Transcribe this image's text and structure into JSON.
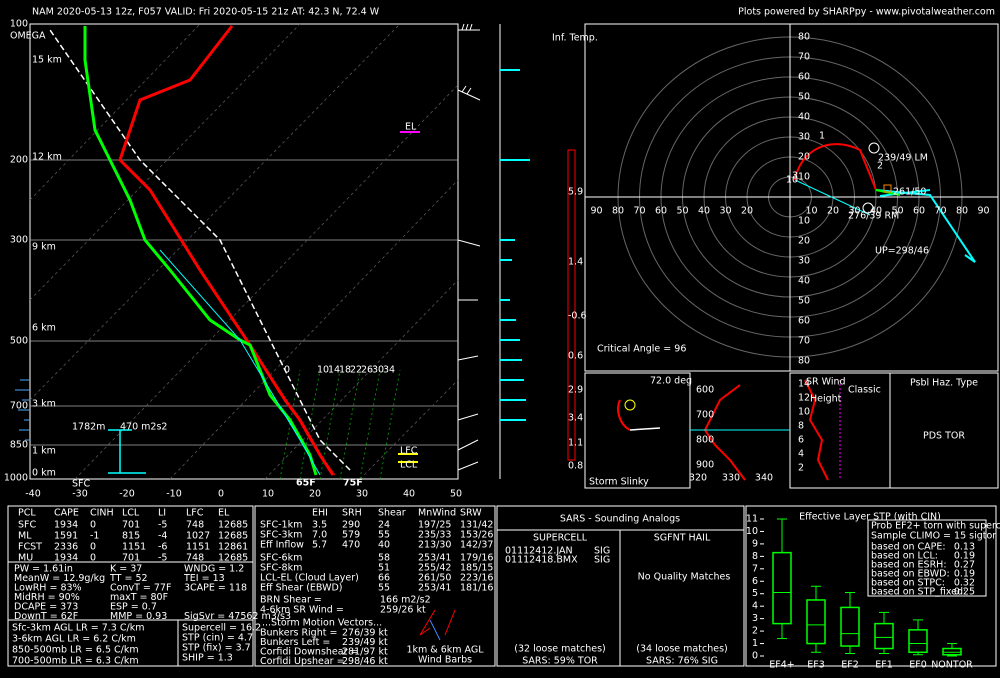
{
  "header": {
    "title": "NAM 2020-05-13 12z, F057   VALID: Fri 2020-05-15 21z   AT: 42.3 N, 72.4 W",
    "credit": "Plots powered by SHARPpy - www.pivotalweather.com"
  },
  "skewt": {
    "pressure_labels": [
      "100",
      "200",
      "300",
      "500",
      "700",
      "850",
      "1000"
    ],
    "height_labels": [
      "15 km",
      "12 km",
      "9 km",
      "6 km",
      "3 km",
      "1 km",
      "0 km"
    ],
    "temp_labels": [
      "-40",
      "-30",
      "-20",
      "-10",
      "0",
      "10",
      "20",
      "30",
      "40",
      "50"
    ],
    "mixing_labels": [
      "0",
      "10",
      "14",
      "18",
      "22",
      "26",
      "30",
      "34"
    ],
    "omega": "OMEGA",
    "el": "EL",
    "lfc": "LFC",
    "lcl": "LCL",
    "sfc": "SFC",
    "dewpoint": "65F",
    "temperature": "75F",
    "inflow_depth": "1782m",
    "inflow_srh": "470 m2s2"
  },
  "inferred_temp": {
    "title": "Inf. Temp.",
    "labels": [
      "5.9",
      "1.4",
      "-0.6",
      "0.6",
      "2.9",
      "3.4",
      "1.1",
      "0.8"
    ]
  },
  "hodograph": {
    "x_left": [
      "90",
      "80",
      "70",
      "60",
      "50",
      "40",
      "30",
      "20"
    ],
    "x_right": [
      "10",
      "20",
      "30",
      "40",
      "50",
      "60",
      "70",
      "80",
      "90"
    ],
    "y_up": [
      "80",
      "70",
      "60",
      "50",
      "40",
      "30",
      "20",
      "10"
    ],
    "y_down": [
      "10",
      "20",
      "30",
      "40",
      "50",
      "60",
      "70",
      "80"
    ],
    "left_mover": "239/49 LM",
    "mean_wind": "261/50",
    "right_mover": "276/39 RM",
    "upshear": "UP=298/46",
    "critical_angle": "Critical Angle = 96",
    "points": [
      "1",
      "2",
      "3",
      "10"
    ]
  },
  "slinky": {
    "angle": "72.0 deg",
    "title": "Storm Slinky",
    "pressure_ticks": [
      "600",
      "700",
      "800",
      "900"
    ],
    "theta_ticks": [
      "320",
      "330",
      "340"
    ]
  },
  "sr_wind": {
    "title": "SR Wind",
    "height": "Height",
    "classic": "Classic",
    "ticks": [
      "14",
      "12",
      "10",
      "8",
      "6",
      "4",
      "2"
    ]
  },
  "hazard": {
    "title": "Psbl Haz. Type",
    "value": "PDS TOR"
  },
  "parcels": {
    "header": [
      "PCL",
      "CAPE",
      "CINH",
      "LCL",
      "LI",
      "LFC",
      "EL"
    ],
    "rows": [
      [
        "SFC",
        "1934",
        "0",
        "701",
        "-5",
        "748",
        "12685"
      ],
      [
        "ML",
        "1591",
        "-1",
        "815",
        "-4",
        "1027",
        "12685"
      ],
      [
        "FCST",
        "2336",
        "0",
        "1151",
        "-6",
        "1151",
        "12861"
      ],
      [
        "MU",
        "1934",
        "0",
        "701",
        "-5",
        "748",
        "12685"
      ]
    ]
  },
  "indices": [
    [
      "PW = 1.61in",
      "K = 37",
      "WNDG = 1.2"
    ],
    [
      "MeanW = 12.9g/kg",
      "TT = 52",
      "TEI = 13"
    ],
    [
      "LowRH = 83%",
      "ConvT = 77F",
      "3CAPE = 118"
    ],
    [
      "MidRH = 90%",
      "maxT = 80F",
      ""
    ],
    [
      "DCAPE = 373",
      "ESP = 0.7",
      ""
    ],
    [
      "DownT = 62F",
      "MMP = 0.93",
      "SigSvr = 47562 m3/s3"
    ]
  ],
  "lapse_rates": [
    "Sfc-3km AGL LR = 7.3 C/km",
    "3-6km AGL LR = 6.2 C/km",
    "850-500mb LR = 6.5 C/km",
    "700-500mb LR = 6.3 C/km"
  ],
  "composites": [
    "Supercell = 16.2",
    "STP (cin) = 4.7",
    "STP (fix) = 3.7",
    "SHIP = 1.3"
  ],
  "kinematics": {
    "header": [
      "EHI",
      "SRH",
      "Shear",
      "MnWind",
      "SRW"
    ],
    "rows": [
      [
        "SFC-1km",
        "3.5",
        "290",
        "24",
        "197/25",
        "131/42"
      ],
      [
        "SFC-3km",
        "7.0",
        "579",
        "55",
        "235/33",
        "153/26"
      ],
      [
        "Eff Inflow",
        "5.7",
        "470",
        "40",
        "213/30",
        "142/37"
      ],
      [
        "SFC-6km",
        "",
        "",
        "58",
        "253/41",
        "179/16"
      ],
      [
        "SFC-8km",
        "",
        "",
        "51",
        "255/42",
        "185/15"
      ],
      [
        "LCL-EL (Cloud Layer)",
        "",
        "",
        "66",
        "261/50",
        "223/16"
      ],
      [
        "Eff Shear (EBWD)",
        "",
        "",
        "55",
        "253/41",
        "181/16"
      ]
    ],
    "extra": [
      [
        "BRN Shear = ",
        "166 m2/s2"
      ],
      [
        "4-6km SR Wind = ",
        "259/26 kt"
      ]
    ],
    "motion_title": "...Storm Motion Vectors...",
    "motion": [
      [
        "Bunkers Right = ",
        "276/39 kt"
      ],
      [
        "Bunkers Left = ",
        "239/49 kt"
      ],
      [
        "Corfidi Downshear = ",
        "281/97 kt"
      ],
      [
        "Corfidi Upshear = ",
        "298/46 kt"
      ]
    ],
    "barb_caption": "1km & 6km AGL\nWind Barbs"
  },
  "sars": {
    "title": "SARS - Sounding Analogs",
    "supercell": "SUPERCELL",
    "hail": "SGFNT HAIL",
    "matches": [
      "01112412.JAN",
      "01112418.BMX"
    ],
    "match_types": [
      "SIG",
      "SIG"
    ],
    "no_hail": "No Quality Matches",
    "supercell_loose": "(32 loose matches)",
    "hail_loose": "(34 loose matches)",
    "supercell_result": "SARS: 59% TOR",
    "hail_result": "SARS: 76% SIG"
  },
  "stp": {
    "title": "Effective Layer STP (with CIN)",
    "yticks": [
      0,
      1,
      2,
      3,
      4,
      5,
      6,
      7,
      8,
      9,
      10,
      11
    ],
    "ylim": [
      0,
      11
    ],
    "categories": [
      "EF4+",
      "EF3",
      "EF2",
      "EF1",
      "EF0",
      "NONTOR"
    ],
    "boxes": [
      [
        1.4,
        2.6,
        5.1,
        8.3,
        11
      ],
      [
        0.3,
        1.0,
        2.5,
        4.5,
        5.6
      ],
      [
        0.2,
        0.8,
        1.8,
        3.9,
        5.1
      ],
      [
        0.2,
        0.6,
        1.5,
        2.6,
        3.5
      ],
      [
        0.1,
        0.3,
        1.0,
        2.1,
        2.9
      ],
      [
        0,
        0.1,
        0.3,
        0.6,
        1.0
      ]
    ],
    "prob_title": "Prob EF2+ torn with supercell",
    "climo": "Sample CLIMO = 15 sigtor",
    "probs": [
      [
        "based on CAPE:",
        "0.13"
      ],
      [
        "based on LCL:",
        "0.19"
      ],
      [
        "based on ESRH:",
        "0.27"
      ],
      [
        "based on EBWD:",
        "0.19"
      ],
      [
        "based on STPC:",
        "0.32"
      ],
      [
        "based on STP_fixed:",
        "0.25"
      ]
    ]
  }
}
